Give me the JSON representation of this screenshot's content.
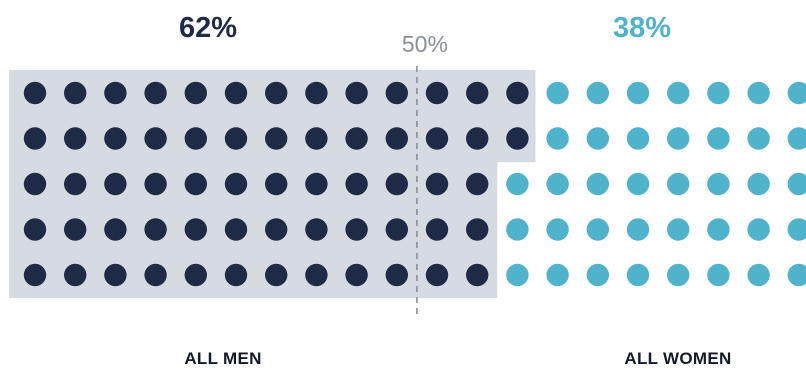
{
  "chart_data": {
    "type": "dot-matrix",
    "total_dots": 100,
    "rows": 5,
    "columns": 20,
    "series": [
      {
        "name": "ALL MEN",
        "value": 62,
        "label": "62%",
        "color": "#1e2a46"
      },
      {
        "name": "ALL WOMEN",
        "value": 38,
        "label": "38%",
        "color": "#4fb3cb"
      }
    ],
    "reference_line": {
      "value": 50,
      "label": "50%",
      "color": "#8a8f99"
    },
    "background_color": "#d5dbe0"
  }
}
